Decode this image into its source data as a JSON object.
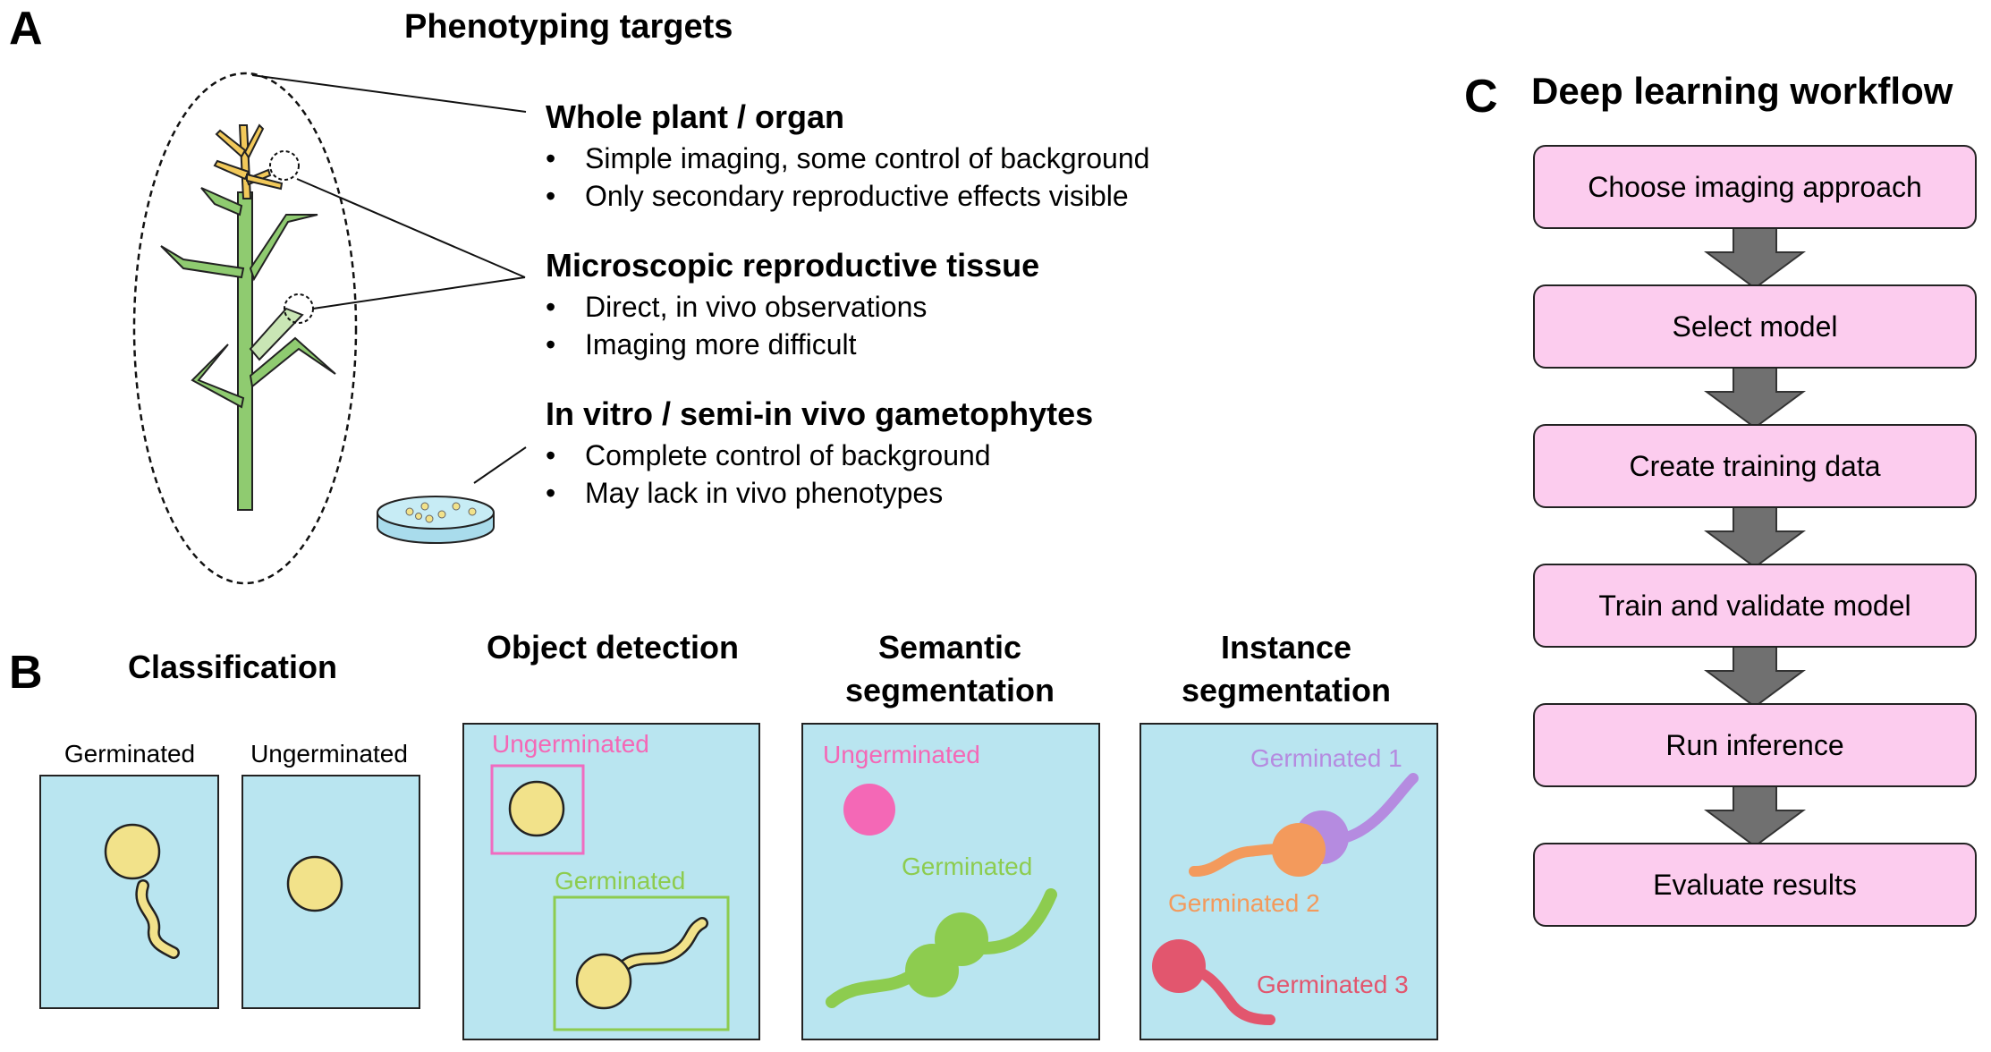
{
  "panel_a": {
    "letter": "A",
    "title": "Phenotyping targets",
    "groups": [
      {
        "heading": "Whole plant / organ",
        "bullets": [
          "Simple imaging, some control of background",
          "Only secondary reproductive effects visible"
        ]
      },
      {
        "heading": "Microscopic reproductive tissue",
        "bullets": [
          "Direct, in vivo observations",
          "Imaging more difficult"
        ]
      },
      {
        "heading": "In vitro / semi-in vivo gametophytes",
        "bullets": [
          "Complete control of background",
          "May lack in vivo phenotypes"
        ]
      }
    ]
  },
  "panel_b": {
    "letter": "B",
    "classification": {
      "title": "Classification",
      "labels": [
        "Germinated",
        "Ungerminated"
      ]
    },
    "object_detection": {
      "title": "Object detection",
      "labels": [
        "Ungerminated",
        "Germinated"
      ]
    },
    "semantic_segmentation": {
      "title": "Semantic segmentation",
      "labels": [
        "Ungerminated",
        "Germinated"
      ]
    },
    "instance_segmentation": {
      "title": "Instance segmentation",
      "labels": [
        "Germinated 1",
        "Germinated 2",
        "Germinated 3"
      ]
    }
  },
  "panel_c": {
    "letter": "C",
    "title": "Deep learning workflow",
    "steps": [
      "Choose imaging approach",
      "Select model",
      "Create training data",
      "Train and validate model",
      "Run inference",
      "Evaluate results"
    ]
  },
  "colors": {
    "pollen": "#f2e28a",
    "background_box": "#b9e5f0",
    "flow_box": "#fcccee",
    "ungerminated": "#f468b6",
    "germinated": "#8dcc4f",
    "instance_1": "#b58be0",
    "instance_2": "#f39a5c",
    "instance_3": "#e2566e",
    "arrow": "#707070"
  }
}
